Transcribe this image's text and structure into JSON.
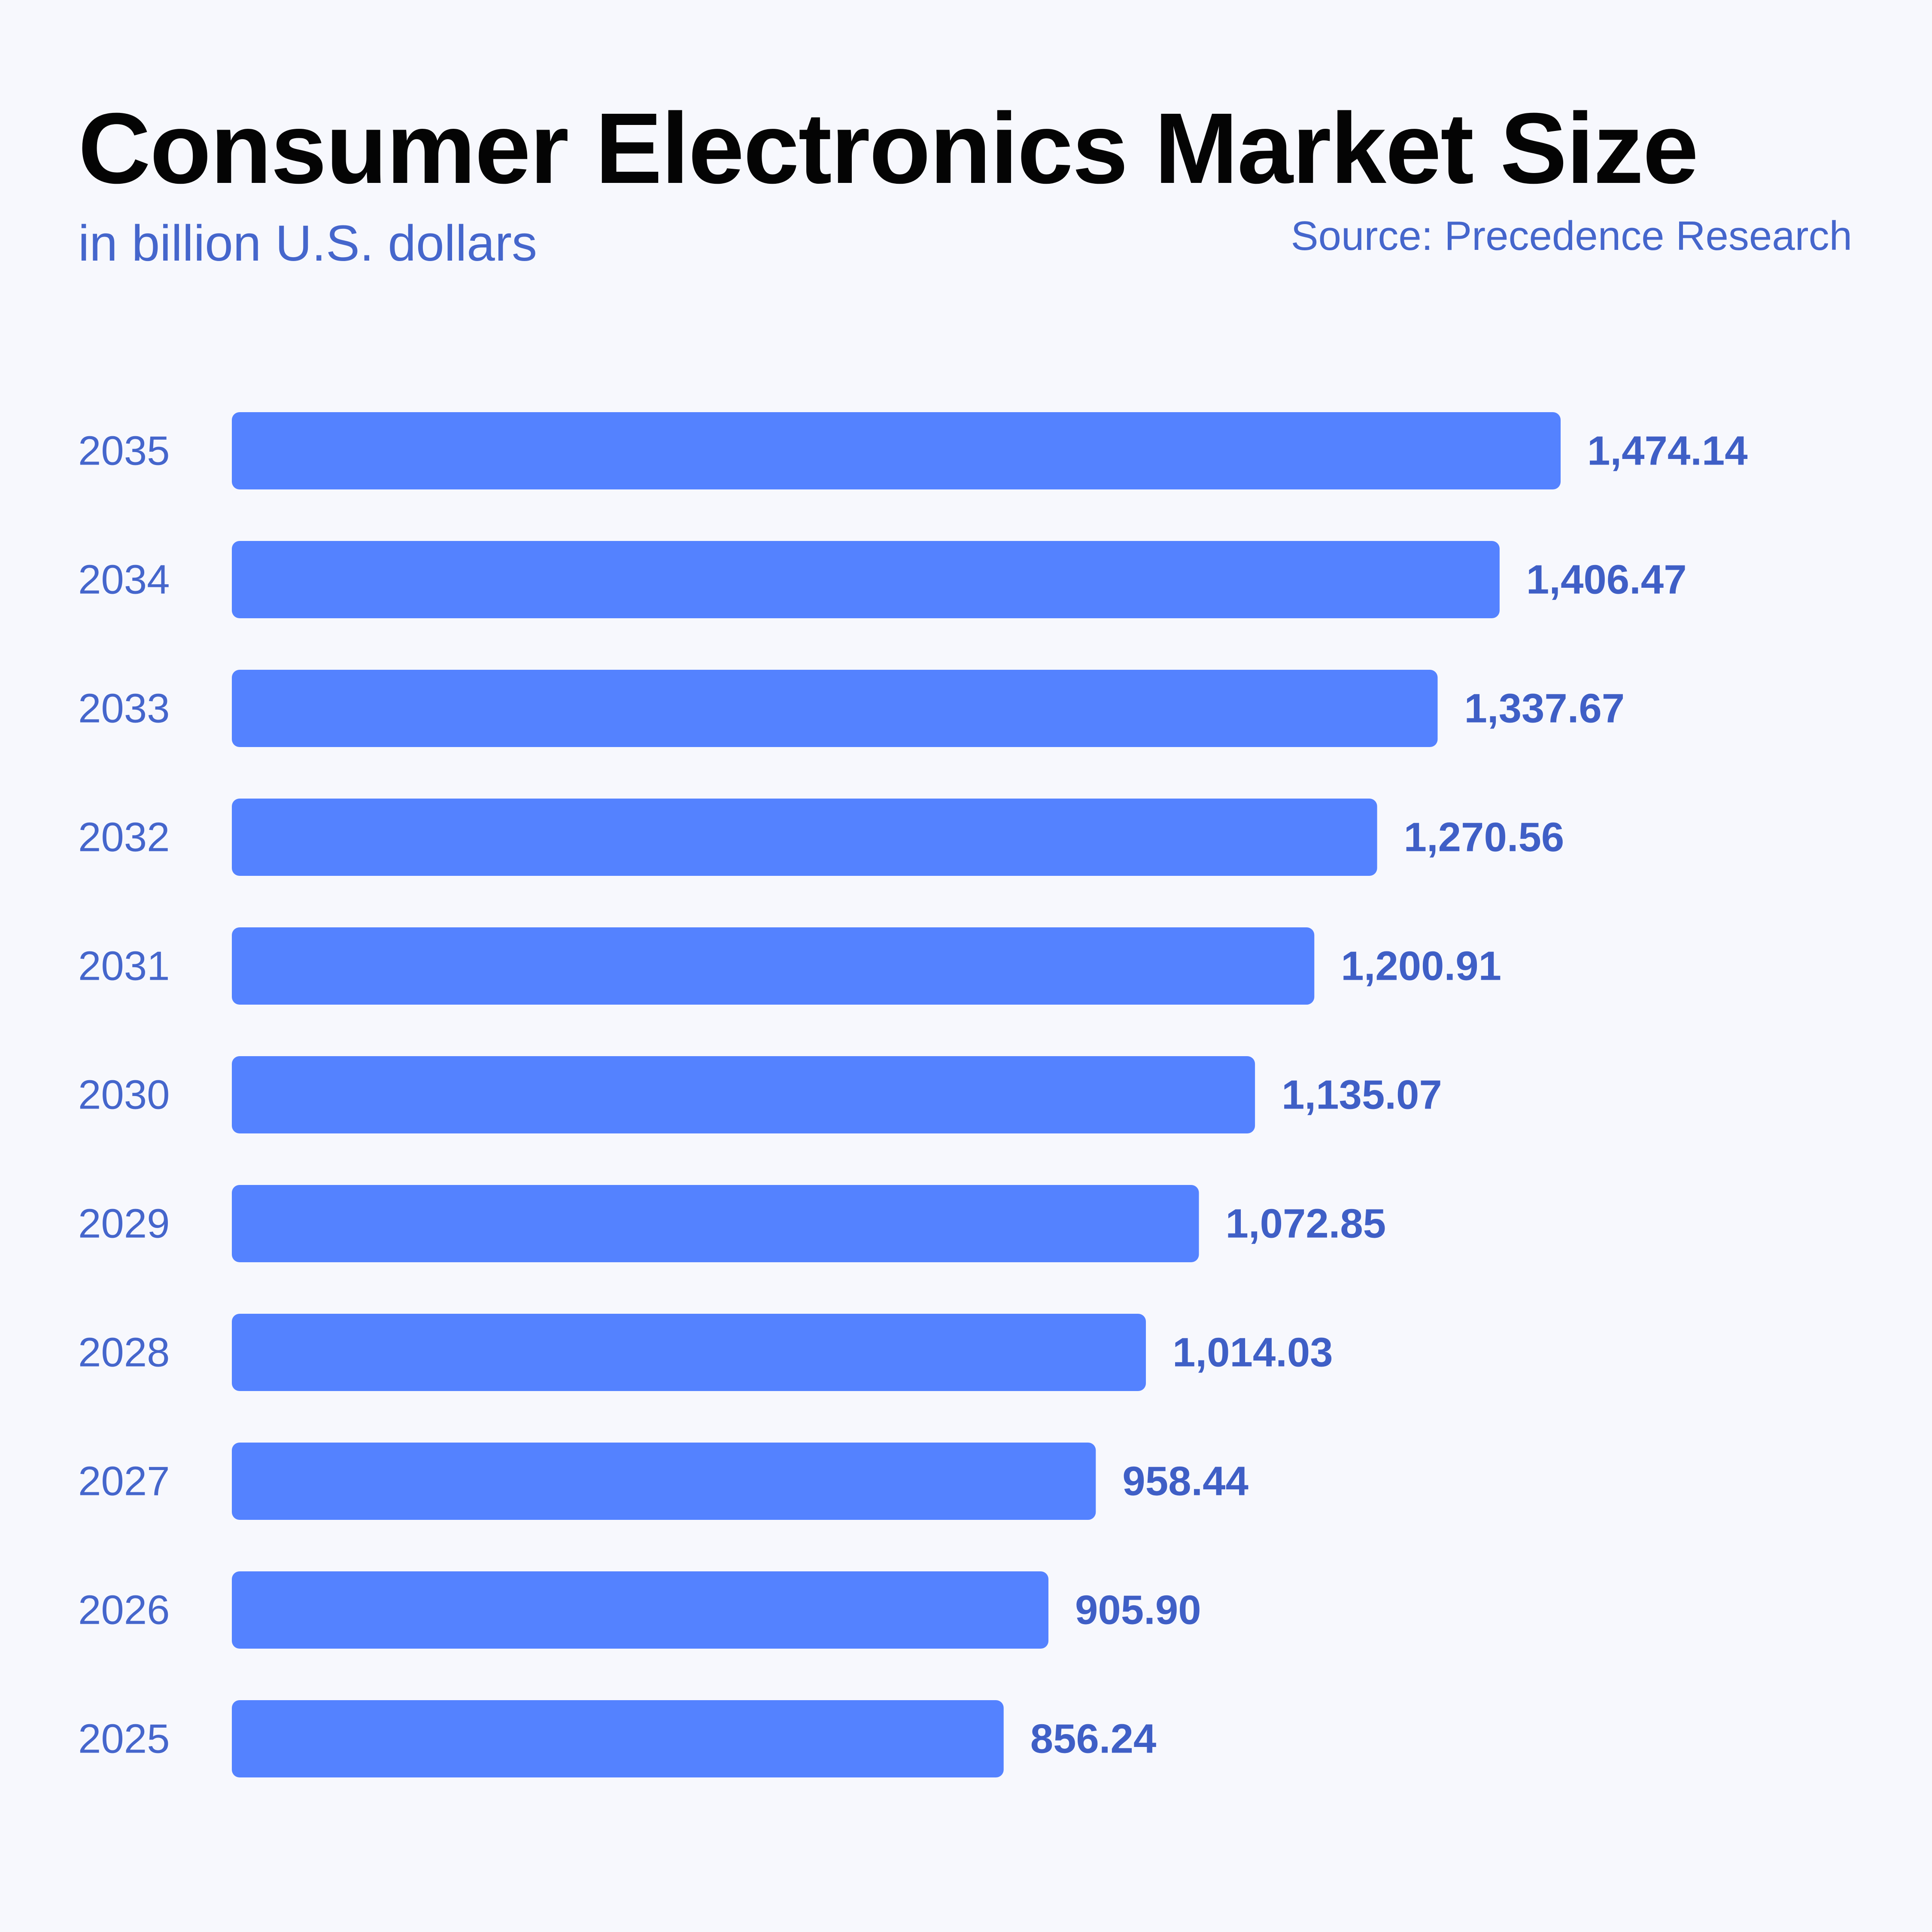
{
  "header": {
    "title": "Consumer Electronics Market Size",
    "subtitle": "in billion U.S. dollars",
    "source": "Source: Precedence Research"
  },
  "colors": {
    "bar": "#5482ff",
    "label": "#4566cc",
    "background": "#f7f8fd",
    "title": "#040404"
  },
  "chart_data": {
    "type": "bar",
    "orientation": "horizontal",
    "title": "Consumer Electronics Market Size",
    "subtitle": "in billion U.S. dollars",
    "categories": [
      "2035",
      "2034",
      "2033",
      "2032",
      "2031",
      "2030",
      "2029",
      "2028",
      "2027",
      "2026",
      "2025"
    ],
    "values": [
      1474.14,
      1406.47,
      1337.67,
      1270.56,
      1200.91,
      1135.07,
      1072.85,
      1014.03,
      958.44,
      905.9,
      856.24
    ],
    "value_labels": [
      "1,474.14",
      "1,406.47",
      "1,337.67",
      "1,270.56",
      "1,200.91",
      "1,135.07",
      "1,072.85",
      "1,014.03",
      "958.44",
      "905.90",
      "856.24"
    ],
    "xlabel": "",
    "ylabel": "",
    "grid": false,
    "legend": "none"
  }
}
